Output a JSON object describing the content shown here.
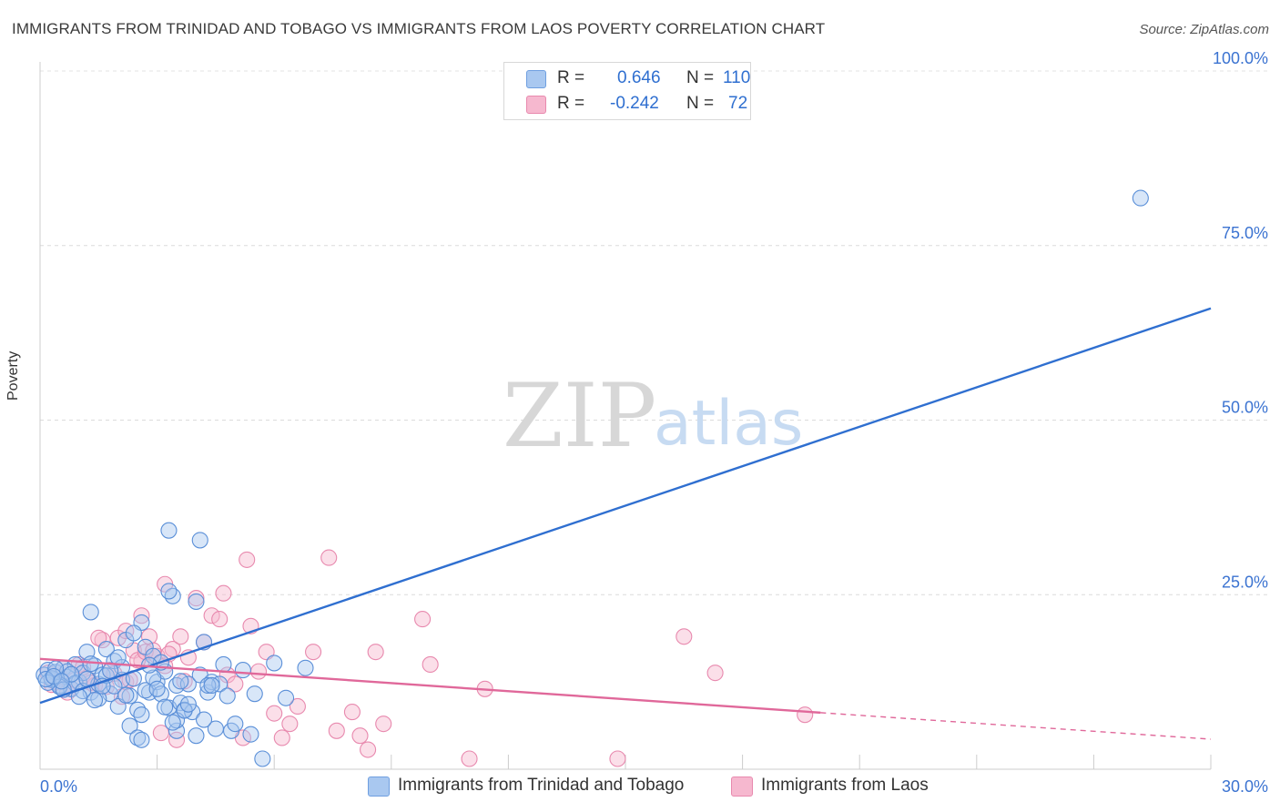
{
  "title": "IMMIGRANTS FROM TRINIDAD AND TOBAGO VS IMMIGRANTS FROM LAOS POVERTY CORRELATION CHART",
  "source": "Source: ZipAtlas.com",
  "watermark": {
    "zip": "ZIP",
    "atlas": "atlas"
  },
  "legend": {
    "r_label": "R =",
    "n_label": "N =",
    "series1": {
      "r": "0.646",
      "n": "110"
    },
    "series2": {
      "r": "-0.242",
      "n": "72"
    }
  },
  "bottom_legend": {
    "series1": "Immigrants from Trinidad and Tobago",
    "series2": "Immigrants from Laos"
  },
  "chart_data": {
    "type": "scatter",
    "title": "IMMIGRANTS FROM TRINIDAD AND TOBAGO VS IMMIGRANTS FROM LAOS POVERTY CORRELATION CHART",
    "xlabel": "",
    "ylabel": "Poverty",
    "xlim": [
      0,
      30
    ],
    "ylim": [
      0,
      100
    ],
    "x_tick_labels": [
      "0.0%",
      "30.0%"
    ],
    "y_tick_labels": [
      "25.0%",
      "50.0%",
      "75.0%",
      "100.0%"
    ],
    "y_ticks": [
      25,
      50,
      75,
      100
    ],
    "x_ticks": [
      0,
      3,
      6,
      9,
      12,
      15,
      18,
      21,
      24,
      27,
      30
    ],
    "colors": {
      "series1": "#2f6fd0",
      "series2": "#e0689a",
      "series1_fill": "#a9c8f0",
      "series2_fill": "#f6b8cf",
      "axis_text": "#3b73d1"
    },
    "series": [
      {
        "name": "Immigrants from Trinidad and Tobago",
        "trend": {
          "x0": 0,
          "y0": 9.5,
          "x1": 30,
          "y1": 66
        },
        "points": [
          [
            0.1,
            13.5
          ],
          [
            0.2,
            14.2
          ],
          [
            0.3,
            12.8
          ],
          [
            0.4,
            13.9
          ],
          [
            0.5,
            12.0
          ],
          [
            0.6,
            14.5
          ],
          [
            0.7,
            13.2
          ],
          [
            0.8,
            11.5
          ],
          [
            0.9,
            15.0
          ],
          [
            1.0,
            12.5
          ],
          [
            1.1,
            13.8
          ],
          [
            1.2,
            16.8
          ],
          [
            1.3,
            11.0
          ],
          [
            1.4,
            14.8
          ],
          [
            1.5,
            12.2
          ],
          [
            1.6,
            13.5
          ],
          [
            1.7,
            17.2
          ],
          [
            1.8,
            10.8
          ],
          [
            1.9,
            15.5
          ],
          [
            2.0,
            9.0
          ],
          [
            2.1,
            12.8
          ],
          [
            2.2,
            18.5
          ],
          [
            2.3,
            10.5
          ],
          [
            2.4,
            13.0
          ],
          [
            2.5,
            8.5
          ],
          [
            2.6,
            21.0
          ],
          [
            2.7,
            17.5
          ],
          [
            2.8,
            11.0
          ],
          [
            2.9,
            16.2
          ],
          [
            3.0,
            12.5
          ],
          [
            3.1,
            10.8
          ],
          [
            3.2,
            14.0
          ],
          [
            3.3,
            8.8
          ],
          [
            3.4,
            24.8
          ],
          [
            3.5,
            12.0
          ],
          [
            3.6,
            9.5
          ],
          [
            3.7,
            8.5
          ],
          [
            3.8,
            12.2
          ],
          [
            3.9,
            8.2
          ],
          [
            4.0,
            24.0
          ],
          [
            4.1,
            13.5
          ],
          [
            4.2,
            18.2
          ],
          [
            4.3,
            11.0
          ],
          [
            4.4,
            12.5
          ],
          [
            4.5,
            5.8
          ],
          [
            4.6,
            12.2
          ],
          [
            4.7,
            15.0
          ],
          [
            4.8,
            10.5
          ],
          [
            4.9,
            5.5
          ],
          [
            5.0,
            6.5
          ],
          [
            5.2,
            14.2
          ],
          [
            5.4,
            5.0
          ],
          [
            5.5,
            10.8
          ],
          [
            5.7,
            1.5
          ],
          [
            6.0,
            15.2
          ],
          [
            6.3,
            10.2
          ],
          [
            6.8,
            14.5
          ],
          [
            1.3,
            22.5
          ],
          [
            3.3,
            25.5
          ],
          [
            3.5,
            5.5
          ],
          [
            0.3,
            13.0
          ],
          [
            0.5,
            11.8
          ],
          [
            0.7,
            14.0
          ],
          [
            0.9,
            12.3
          ],
          [
            1.1,
            11.2
          ],
          [
            1.3,
            15.1
          ],
          [
            1.5,
            10.1
          ],
          [
            1.7,
            13.4
          ],
          [
            1.9,
            11.9
          ],
          [
            2.1,
            14.6
          ],
          [
            2.3,
            6.2
          ],
          [
            2.5,
            4.5
          ],
          [
            2.6,
            4.2
          ],
          [
            2.7,
            11.3
          ],
          [
            2.9,
            13.1
          ],
          [
            3.1,
            15.3
          ],
          [
            3.3,
            34.2
          ],
          [
            3.5,
            7.0
          ],
          [
            3.7,
            8.4
          ],
          [
            4.1,
            32.8
          ],
          [
            4.3,
            12.0
          ],
          [
            0.2,
            12.4
          ],
          [
            0.4,
            14.4
          ],
          [
            0.6,
            11.4
          ],
          [
            0.8,
            13.6
          ],
          [
            1.0,
            10.4
          ],
          [
            1.2,
            12.9
          ],
          [
            1.4,
            9.9
          ],
          [
            1.6,
            11.9
          ],
          [
            1.8,
            14.1
          ],
          [
            2.0,
            16.0
          ],
          [
            2.2,
            10.6
          ],
          [
            2.4,
            19.5
          ],
          [
            2.6,
            7.8
          ],
          [
            2.8,
            14.9
          ],
          [
            3.0,
            11.5
          ],
          [
            3.2,
            8.9
          ],
          [
            3.4,
            6.7
          ],
          [
            3.6,
            12.6
          ],
          [
            3.8,
            9.3
          ],
          [
            4.0,
            4.8
          ],
          [
            4.2,
            7.1
          ],
          [
            4.4,
            12.0
          ],
          [
            0.15,
            12.9
          ],
          [
            0.35,
            13.3
          ],
          [
            0.55,
            12.6
          ],
          [
            28.2,
            81.8
          ]
        ]
      },
      {
        "name": "Immigrants from Laos",
        "trend": {
          "x0": 0,
          "y0": 15.8,
          "x1": 20,
          "y1": 8.1,
          "dash_x1": 30,
          "dash_y1": 4.3
        },
        "points": [
          [
            0.2,
            13.8
          ],
          [
            0.4,
            12.5
          ],
          [
            0.6,
            14.5
          ],
          [
            0.8,
            11.5
          ],
          [
            1.0,
            15.0
          ],
          [
            1.2,
            13.0
          ],
          [
            1.4,
            12.0
          ],
          [
            1.6,
            18.5
          ],
          [
            1.8,
            14.2
          ],
          [
            2.0,
            18.8
          ],
          [
            2.2,
            12.5
          ],
          [
            2.4,
            17.0
          ],
          [
            2.6,
            15.5
          ],
          [
            2.8,
            19.0
          ],
          [
            3.0,
            16.2
          ],
          [
            3.2,
            14.8
          ],
          [
            3.4,
            17.2
          ],
          [
            3.6,
            19.0
          ],
          [
            3.8,
            16.0
          ],
          [
            4.0,
            24.5
          ],
          [
            4.2,
            18.2
          ],
          [
            4.4,
            22.0
          ],
          [
            4.6,
            21.5
          ],
          [
            4.8,
            13.5
          ],
          [
            5.0,
            12.2
          ],
          [
            5.2,
            4.5
          ],
          [
            5.4,
            20.5
          ],
          [
            5.6,
            14.0
          ],
          [
            5.8,
            16.8
          ],
          [
            6.0,
            8.0
          ],
          [
            6.2,
            4.5
          ],
          [
            6.4,
            6.5
          ],
          [
            6.6,
            9.0
          ],
          [
            7.0,
            16.8
          ],
          [
            7.4,
            30.3
          ],
          [
            7.6,
            5.5
          ],
          [
            8.2,
            4.8
          ],
          [
            8.4,
            2.8
          ],
          [
            8.8,
            6.5
          ],
          [
            9.8,
            21.5
          ],
          [
            10.0,
            15.0
          ],
          [
            11.4,
            11.5
          ],
          [
            11.0,
            1.5
          ],
          [
            14.8,
            1.5
          ],
          [
            16.5,
            19.0
          ],
          [
            17.3,
            13.8
          ],
          [
            19.6,
            7.8
          ],
          [
            5.3,
            30.0
          ],
          [
            4.7,
            25.2
          ],
          [
            3.2,
            26.5
          ],
          [
            2.6,
            22.0
          ],
          [
            2.2,
            19.8
          ],
          [
            0.3,
            12.1
          ],
          [
            0.5,
            13.2
          ],
          [
            0.7,
            11.0
          ],
          [
            0.9,
            12.8
          ],
          [
            1.1,
            14.6
          ],
          [
            1.3,
            12.4
          ],
          [
            1.5,
            18.8
          ],
          [
            1.7,
            11.8
          ],
          [
            1.9,
            13.7
          ],
          [
            2.1,
            10.4
          ],
          [
            2.3,
            12.8
          ],
          [
            2.5,
            15.6
          ],
          [
            2.7,
            16.8
          ],
          [
            2.9,
            17.0
          ],
          [
            3.1,
            5.2
          ],
          [
            3.3,
            16.5
          ],
          [
            3.5,
            4.2
          ],
          [
            3.7,
            12.6
          ],
          [
            8.0,
            8.2
          ],
          [
            8.6,
            16.8
          ]
        ]
      }
    ]
  }
}
